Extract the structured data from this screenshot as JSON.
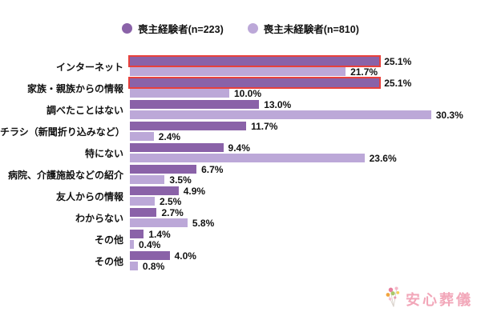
{
  "chart_data": {
    "type": "bar",
    "orientation": "horizontal",
    "title": "",
    "xlabel": "",
    "ylabel": "",
    "xlim": [
      0,
      31
    ],
    "grid": false,
    "legend_position": "top",
    "value_suffix": "%",
    "categories": [
      "インターネット",
      "家族・親族からの情報",
      "調べたことはない",
      "チラシ（新聞折り込みなど）",
      "特にない",
      "病院、介護施設などの紹介",
      "友人からの情報",
      "わからない",
      "その他",
      "その他"
    ],
    "series": [
      {
        "name": "喪主経験者(n=223)",
        "color": "#8a62a8",
        "values": [
          25.1,
          25.1,
          13.0,
          11.7,
          9.4,
          6.7,
          4.9,
          2.7,
          1.4,
          4.0
        ]
      },
      {
        "name": "喪主未経験者(n=810)",
        "color": "#bca8d8",
        "values": [
          21.7,
          10.0,
          30.3,
          2.4,
          23.6,
          3.5,
          2.5,
          5.8,
          0.4,
          0.8
        ]
      }
    ],
    "highlighted": [
      {
        "category_index": 0,
        "series_index": 0
      },
      {
        "category_index": 1,
        "series_index": 0
      }
    ],
    "highlight_color": "#e8413c"
  },
  "legend": {
    "items": [
      {
        "label": "喪主経験者(n=223)",
        "color": "#8a62a8"
      },
      {
        "label": "喪主未経験者(n=810)",
        "color": "#bca8d8"
      }
    ]
  },
  "logo": {
    "text": "安心葬儀",
    "color": "#f2a7b9",
    "icon": "flower-icon",
    "flower_dot_colors": [
      "#e87e9d",
      "#f5b8c8",
      "#f2a43f",
      "#a9c86a",
      "#f5ce58",
      "#f5c3d2",
      "#e89ab0"
    ]
  }
}
